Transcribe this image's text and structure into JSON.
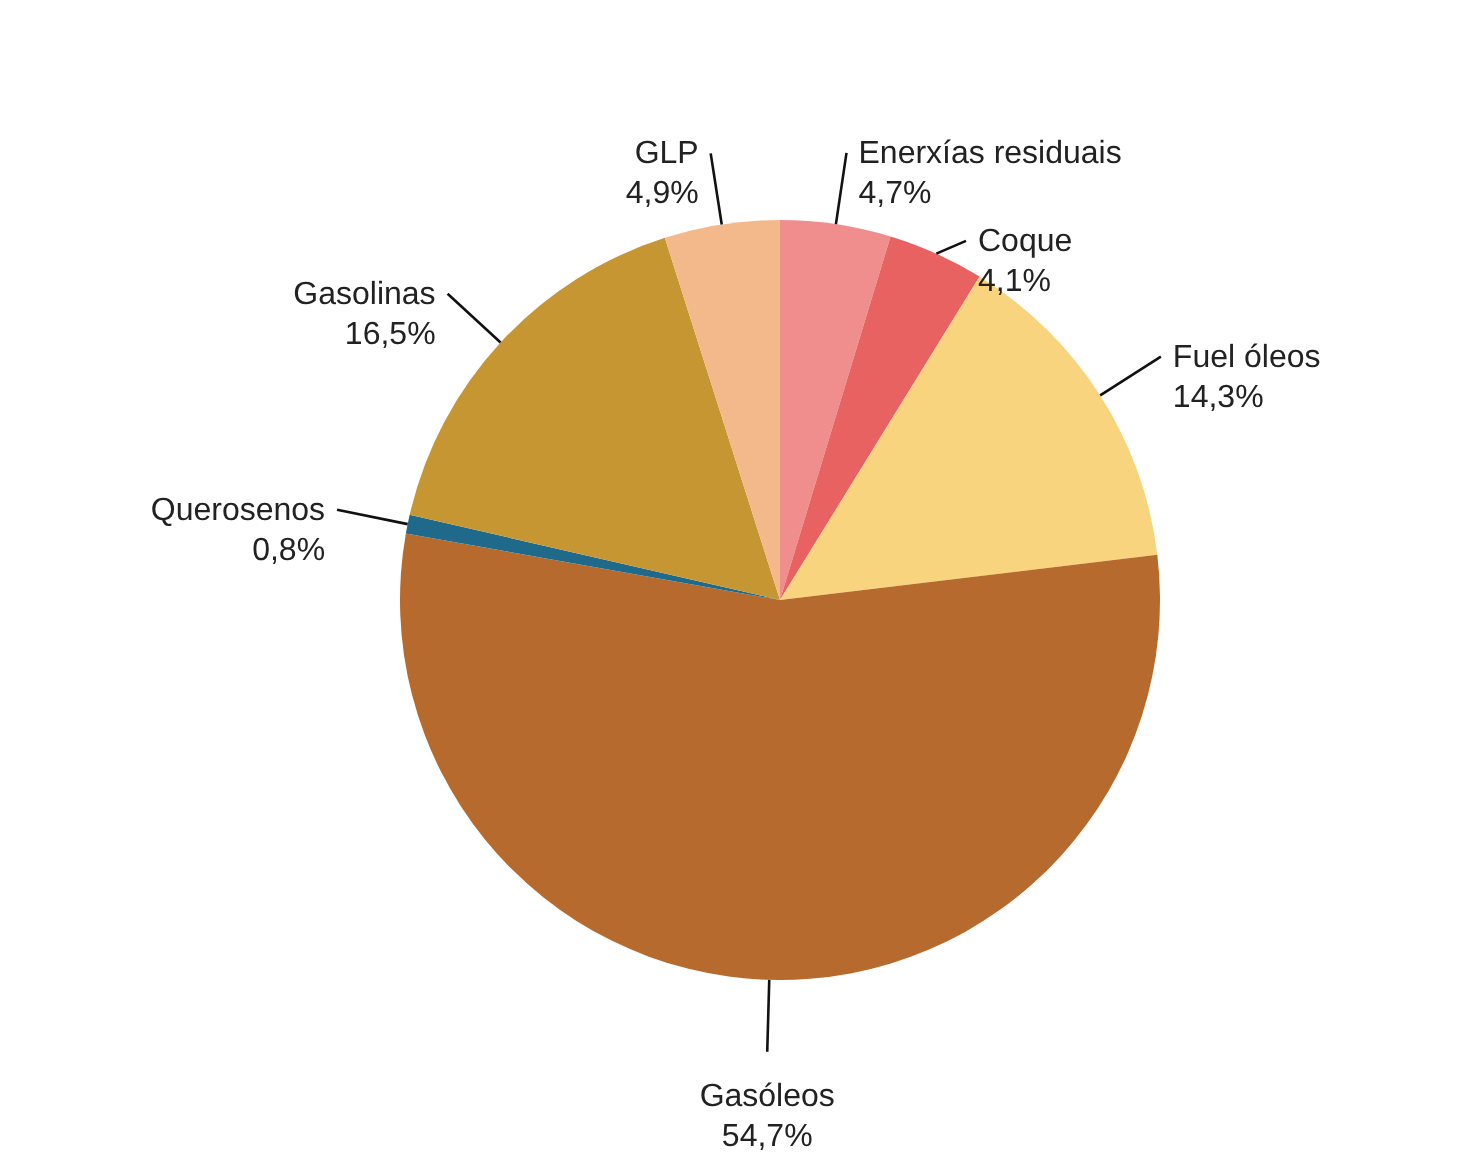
{
  "chart_data": {
    "type": "pie",
    "categories": [
      "Enerxías residuais",
      "Coque",
      "Fuel óleos",
      "Gasóleos",
      "Querosenos",
      "Gasolinas",
      "GLP"
    ],
    "values": [
      4.7,
      4.1,
      14.3,
      54.7,
      0.8,
      16.5,
      4.9
    ],
    "colors": [
      "#f08e8e",
      "#e86262",
      "#f9d47f",
      "#b76a2d",
      "#1f6a8a",
      "#c69632",
      "#f4b98b"
    ],
    "value_labels": [
      "4,7%",
      "4,1%",
      "14,3%",
      "54,7%",
      "0,8%",
      "16,5%",
      "4,9%"
    ]
  }
}
